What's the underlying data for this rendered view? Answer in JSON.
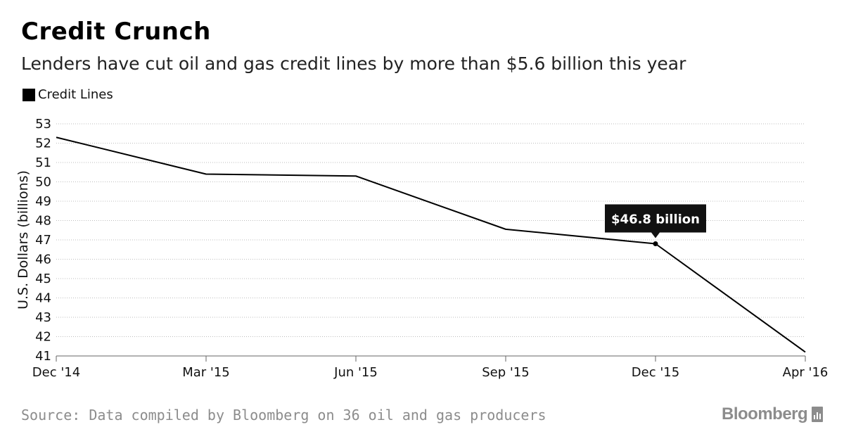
{
  "header": {
    "title": "Credit Crunch",
    "subtitle": "Lenders have cut oil and gas credit lines by more than $5.6 billion this year"
  },
  "legend": {
    "label": "Credit Lines",
    "color": "#000000"
  },
  "footer": {
    "source": "Source: Data compiled by Bloomberg on 36 oil and gas producers",
    "logo": "Bloomberg"
  },
  "chart_data": {
    "type": "line",
    "title": "Credit Crunch",
    "subtitle": "Lenders have cut oil and gas credit lines by more than $5.6 billion this year",
    "xlabel": "",
    "ylabel": "U.S. Dollars (billions)",
    "x_ticks": [
      "Dec '14",
      "Mar '15",
      "Jun '15",
      "Sep '15",
      "Dec '15",
      "Apr '16"
    ],
    "y_ticks": [
      41,
      42,
      43,
      44,
      45,
      46,
      47,
      48,
      49,
      50,
      51,
      52,
      53
    ],
    "ylim": [
      41,
      53
    ],
    "grid": "horizontal dotted",
    "legend_position": "top-left",
    "series": [
      {
        "name": "Credit Lines",
        "color": "#000000",
        "points": [
          {
            "x": "Dec '14",
            "y": 52.3
          },
          {
            "x": "Mar '15",
            "y": 50.4
          },
          {
            "x": "Jun '15",
            "y": 50.3
          },
          {
            "x": "Sep '15",
            "y": 47.55
          },
          {
            "x": "Dec '15",
            "y": 46.8
          },
          {
            "x": "Apr '16",
            "y": 41.2
          }
        ]
      }
    ],
    "annotations": [
      {
        "x": "Dec '15",
        "y": 46.8,
        "text": "$46.8 billion"
      }
    ]
  }
}
